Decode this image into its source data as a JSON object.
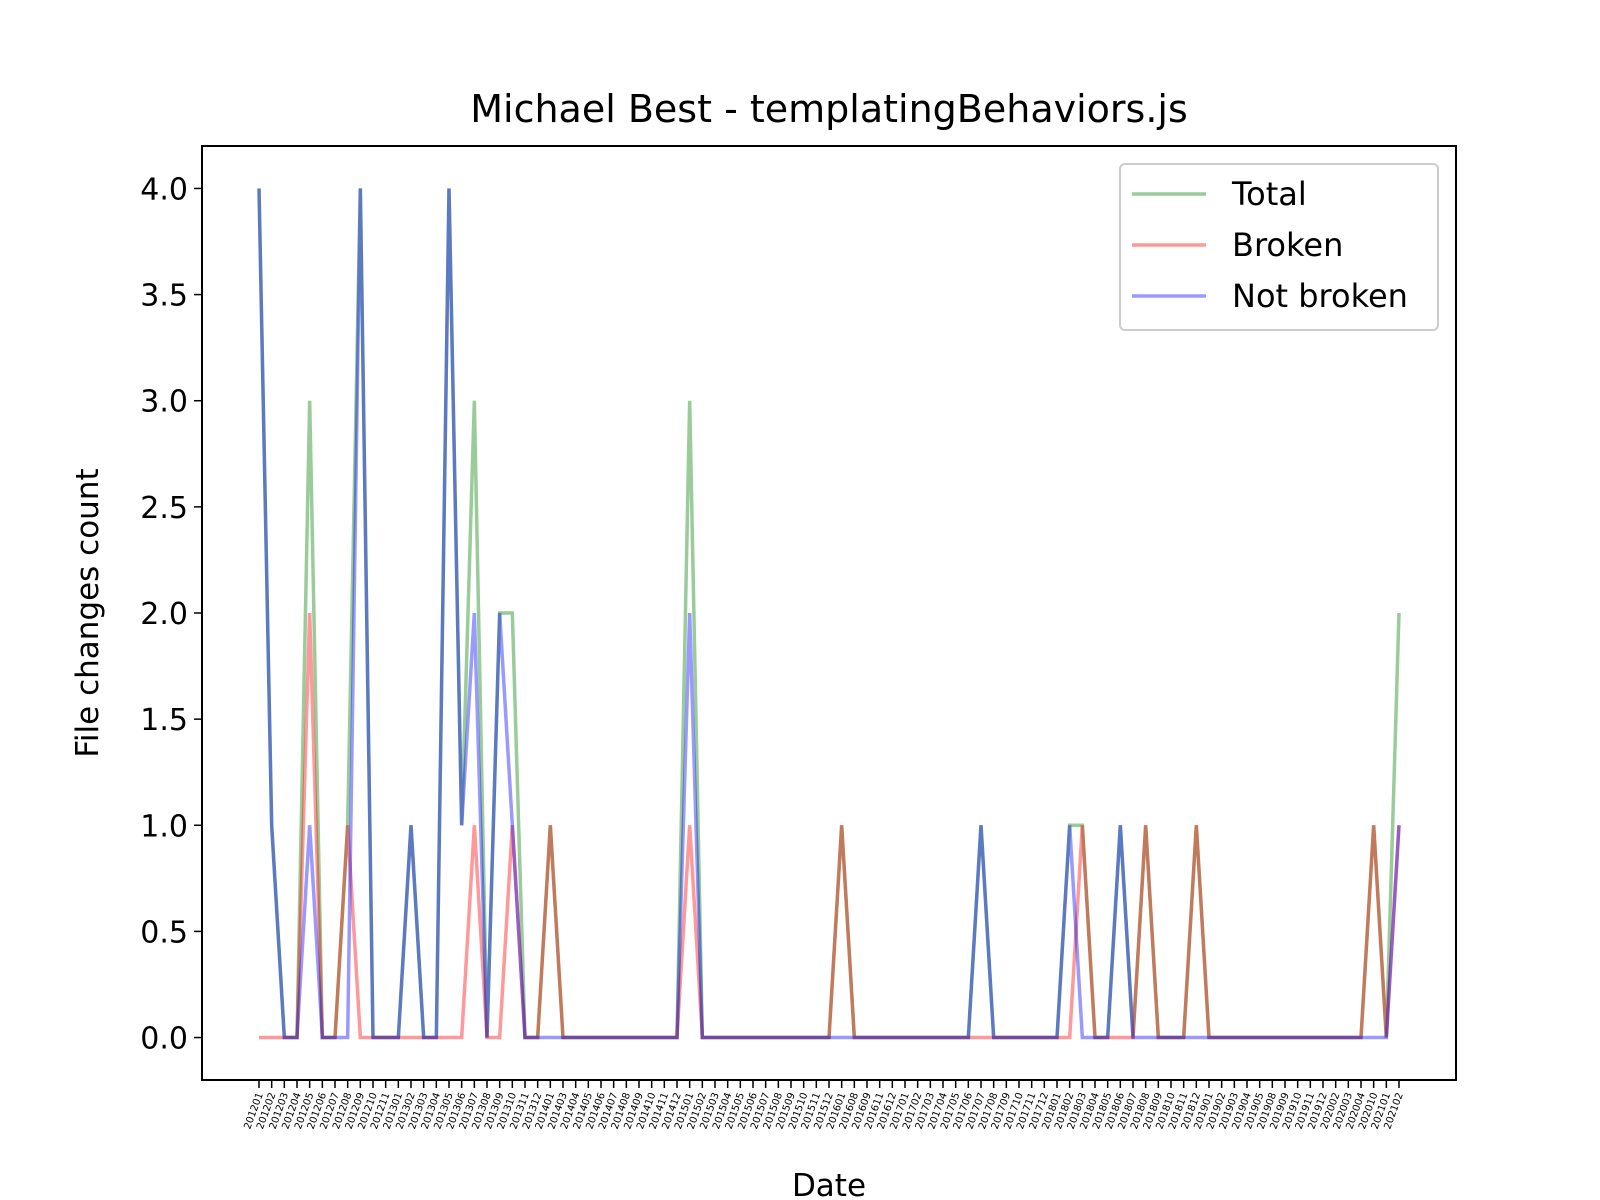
{
  "chart_data": {
    "type": "line",
    "title": "Michael Best - templatingBehaviors.js",
    "xlabel": "Date",
    "ylabel": "File changes count",
    "categories": [
      "201201",
      "201202",
      "201203",
      "201204",
      "201205",
      "201206",
      "201207",
      "201208",
      "201209",
      "201210",
      "201211",
      "201301",
      "201302",
      "201303",
      "201304",
      "201305",
      "201306",
      "201307",
      "201308",
      "201309",
      "201310",
      "201311",
      "201312",
      "201401",
      "201403",
      "201404",
      "201405",
      "201406",
      "201407",
      "201408",
      "201409",
      "201410",
      "201411",
      "201412",
      "201501",
      "201502",
      "201503",
      "201504",
      "201505",
      "201506",
      "201507",
      "201508",
      "201509",
      "201510",
      "201511",
      "201512",
      "201601",
      "201608",
      "201609",
      "201611",
      "201612",
      "201701",
      "201702",
      "201703",
      "201704",
      "201705",
      "201706",
      "201707",
      "201708",
      "201709",
      "201710",
      "201711",
      "201712",
      "201801",
      "201802",
      "201803",
      "201804",
      "201805",
      "201806",
      "201807",
      "201808",
      "201809",
      "201810",
      "201811",
      "201812",
      "201901",
      "201902",
      "201903",
      "201904",
      "201905",
      "201908",
      "201909",
      "201910",
      "201911",
      "201912",
      "202002",
      "202003",
      "202004",
      "202010",
      "202101",
      "202102"
    ],
    "series": [
      {
        "name": "Total",
        "color": "green",
        "values": [
          4,
          1,
          0,
          0,
          3,
          0,
          0,
          1,
          4,
          0,
          0,
          0,
          1,
          0,
          0,
          4,
          1,
          3,
          0,
          2,
          2,
          0,
          0,
          1,
          0,
          0,
          0,
          0,
          0,
          0,
          0,
          0,
          0,
          0,
          3,
          0,
          0,
          0,
          0,
          0,
          0,
          0,
          0,
          0,
          0,
          0,
          1,
          0,
          0,
          0,
          0,
          0,
          0,
          0,
          0,
          0,
          0,
          1,
          0,
          0,
          0,
          0,
          0,
          0,
          1,
          1,
          0,
          0,
          1,
          0,
          1,
          0,
          0,
          0,
          1,
          0,
          0,
          0,
          0,
          0,
          0,
          0,
          0,
          0,
          0,
          0,
          0,
          0,
          1,
          0,
          2
        ]
      },
      {
        "name": "Broken",
        "color": "red",
        "values": [
          0,
          0,
          0,
          0,
          2,
          0,
          0,
          1,
          0,
          0,
          0,
          0,
          0,
          0,
          0,
          0,
          0,
          1,
          0,
          0,
          1,
          0,
          0,
          1,
          0,
          0,
          0,
          0,
          0,
          0,
          0,
          0,
          0,
          0,
          1,
          0,
          0,
          0,
          0,
          0,
          0,
          0,
          0,
          0,
          0,
          0,
          1,
          0,
          0,
          0,
          0,
          0,
          0,
          0,
          0,
          0,
          0,
          0,
          0,
          0,
          0,
          0,
          0,
          0,
          0,
          1,
          0,
          0,
          0,
          0,
          1,
          0,
          0,
          0,
          1,
          0,
          0,
          0,
          0,
          0,
          0,
          0,
          0,
          0,
          0,
          0,
          0,
          0,
          1,
          0,
          1
        ]
      },
      {
        "name": "Not broken",
        "color": "blue",
        "values": [
          4,
          1,
          0,
          0,
          1,
          0,
          0,
          0,
          4,
          0,
          0,
          0,
          1,
          0,
          0,
          4,
          1,
          2,
          0,
          2,
          1,
          0,
          0,
          0,
          0,
          0,
          0,
          0,
          0,
          0,
          0,
          0,
          0,
          0,
          2,
          0,
          0,
          0,
          0,
          0,
          0,
          0,
          0,
          0,
          0,
          0,
          0,
          0,
          0,
          0,
          0,
          0,
          0,
          0,
          0,
          0,
          0,
          1,
          0,
          0,
          0,
          0,
          0,
          0,
          1,
          0,
          0,
          0,
          1,
          0,
          0,
          0,
          0,
          0,
          0,
          0,
          0,
          0,
          0,
          0,
          0,
          0,
          0,
          0,
          0,
          0,
          0,
          0,
          0,
          0,
          1
        ]
      }
    ],
    "ylim": [
      -0.2,
      4.2
    ],
    "yticks": [
      {
        "value": 0,
        "label": "0.0"
      },
      0.5,
      {
        "value": 1,
        "label": "1.0"
      },
      1.5,
      {
        "value": 2,
        "label": "2.0"
      },
      2.5,
      {
        "value": 3,
        "label": "3.0"
      },
      3.5,
      {
        "value": 4,
        "label": "4.0"
      }
    ],
    "legend": "upper right"
  }
}
